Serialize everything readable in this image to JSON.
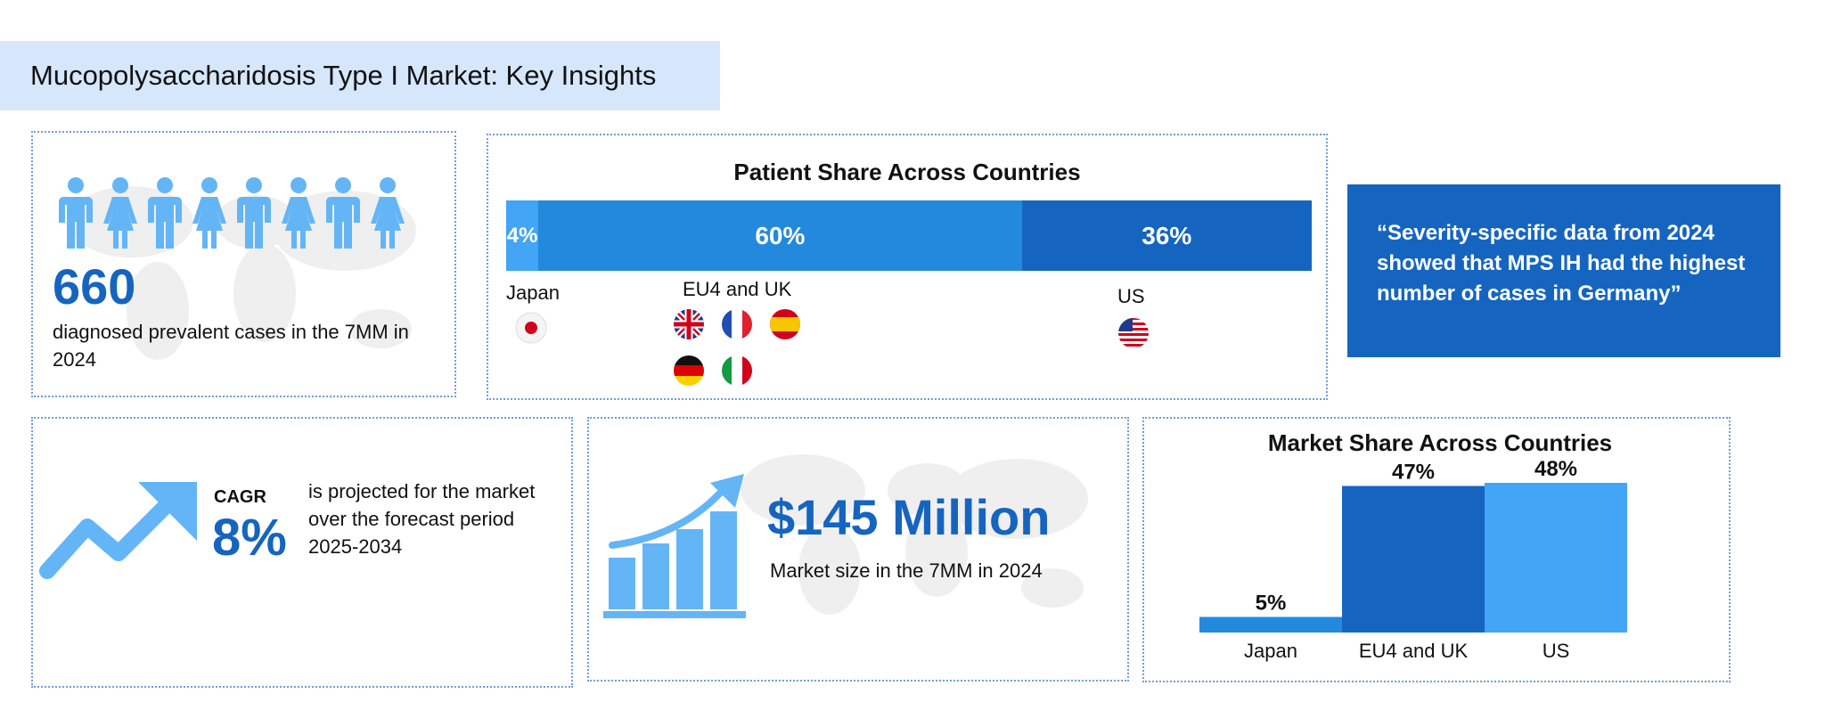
{
  "header": {
    "title": "Mucopolysaccharidosis Type I Market: Key Insights"
  },
  "prevalence": {
    "value": "660",
    "caption": "diagnosed prevalent cases in the 7MM in 2024",
    "icons": [
      "male-icon",
      "female-icon",
      "male-icon",
      "female-icon",
      "male-icon",
      "female-icon",
      "male-icon",
      "female-icon"
    ]
  },
  "patient_share": {
    "title": "Patient Share Across Countries",
    "segments": [
      {
        "label": "4%",
        "country": "Japan",
        "value": 4,
        "color": "#42a5f5"
      },
      {
        "label": "60%",
        "country": "EU4 and UK",
        "value": 60,
        "color": "#2389dd"
      },
      {
        "label": "36%",
        "country": "US",
        "value": 36,
        "color": "#1565c0"
      }
    ],
    "flags": [
      "japan-flag",
      "uk-flag",
      "france-flag",
      "spain-flag",
      "germany-flag",
      "italy-flag",
      "us-flag"
    ]
  },
  "quote": {
    "text": "“Severity-specific data from 2024 showed that MPS IH had the highest number of cases in Germany”"
  },
  "cagr": {
    "label": "CAGR",
    "value": "8%",
    "description": "is projected for the market over the forecast period 2025-2034"
  },
  "market_size": {
    "value": "$145 Million",
    "caption": "Market size in the 7MM in 2024"
  },
  "colors": {
    "primary": "#1565c0",
    "mid": "#2389dd",
    "light": "#42a5f5",
    "title_bg": "#d6e6fb"
  },
  "chart_data": {
    "type": "bar",
    "title": "Market Share Across Countries",
    "categories": [
      "Japan",
      "EU4 and UK",
      "US"
    ],
    "values": [
      5,
      47,
      48
    ],
    "value_labels": [
      "5%",
      "47%",
      "48%"
    ],
    "colors": [
      "#2389dd",
      "#1565c0",
      "#42a5f5"
    ],
    "unit": "%",
    "ylim": [
      0,
      50
    ],
    "xlabel": "",
    "ylabel": "",
    "grid": false,
    "legend": "none"
  }
}
